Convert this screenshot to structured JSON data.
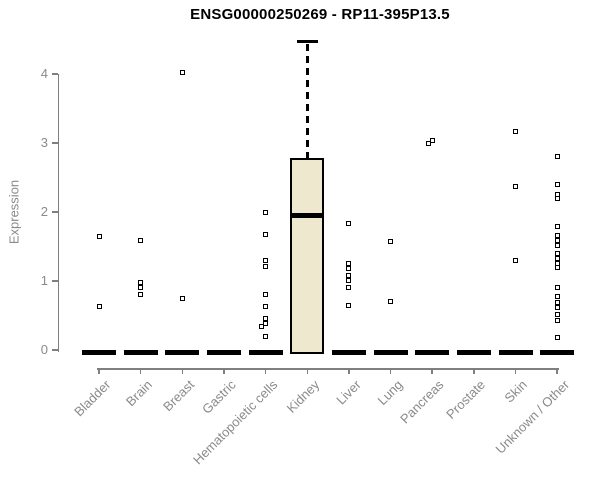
{
  "chart_data": {
    "type": "boxplot",
    "title": "ENSG00000250269 - RP11-395P13.5",
    "ylabel": "Expression",
    "xlabel": "",
    "ylim": [
      0,
      4.6
    ],
    "yticks": [
      0,
      1,
      2,
      3,
      4
    ],
    "grid": false,
    "legend": false,
    "categories": [
      "Bladder",
      "Brain",
      "Breast",
      "Gastric",
      "Hematopoietic cells",
      "Kidney",
      "Liver",
      "Lung",
      "Pancreas",
      "Prostate",
      "Skin",
      "Unknown / Other"
    ],
    "series": [
      {
        "category": "Bladder",
        "box": {
          "q1": 0,
          "median": 0,
          "q3": 0,
          "whisker_low": 0,
          "whisker_high": 0
        },
        "points": [
          1.64,
          0.63
        ]
      },
      {
        "category": "Brain",
        "box": {
          "q1": 0,
          "median": 0,
          "q3": 0,
          "whisker_low": 0,
          "whisker_high": 0
        },
        "points": [
          1.58,
          0.98,
          0.9,
          0.8
        ]
      },
      {
        "category": "Breast",
        "box": {
          "q1": 0,
          "median": 0,
          "q3": 0,
          "whisker_low": 0,
          "whisker_high": 0
        },
        "points": [
          4.02,
          0.74
        ]
      },
      {
        "category": "Gastric",
        "box": {
          "q1": 0,
          "median": 0,
          "q3": 0,
          "whisker_low": 0,
          "whisker_high": 0
        },
        "points": []
      },
      {
        "category": "Hematopoietic cells",
        "box": {
          "q1": 0,
          "median": 0,
          "q3": 0,
          "whisker_low": 0,
          "whisker_high": 0
        },
        "points": [
          2.0,
          1.67,
          1.3,
          1.21,
          0.8,
          0.63,
          0.46,
          0.39,
          0.34,
          0.19
        ]
      },
      {
        "category": "Kidney",
        "box": {
          "q1": 0,
          "median": 1.95,
          "q3": 2.77,
          "whisker_low": 0,
          "whisker_high": 4.47
        },
        "points": []
      },
      {
        "category": "Liver",
        "box": {
          "q1": 0,
          "median": 0,
          "q3": 0,
          "whisker_low": 0,
          "whisker_high": 0
        },
        "points": [
          1.84,
          1.25,
          1.18,
          1.08,
          1.01,
          0.91,
          0.64
        ]
      },
      {
        "category": "Lung",
        "box": {
          "q1": 0,
          "median": 0,
          "q3": 0,
          "whisker_low": 0,
          "whisker_high": 0
        },
        "points": [
          1.57,
          0.71
        ]
      },
      {
        "category": "Pancreas",
        "box": {
          "q1": 0,
          "median": 0,
          "q3": 0,
          "whisker_low": 0,
          "whisker_high": 0
        },
        "points": [
          3.03,
          2.99
        ]
      },
      {
        "category": "Prostate",
        "box": {
          "q1": 0,
          "median": 0,
          "q3": 0,
          "whisker_low": 0,
          "whisker_high": 0
        },
        "points": []
      },
      {
        "category": "Skin",
        "box": {
          "q1": 0,
          "median": 0,
          "q3": 0,
          "whisker_low": 0,
          "whisker_high": 0
        },
        "points": [
          3.17,
          2.37,
          1.3
        ]
      },
      {
        "category": "Unknown / Other",
        "box": {
          "q1": 0,
          "median": 0,
          "q3": 0,
          "whisker_low": 0,
          "whisker_high": 0
        },
        "points": [
          2.81,
          2.4,
          2.25,
          2.19,
          1.79,
          1.66,
          1.59,
          1.52,
          1.4,
          1.33,
          1.26,
          1.2,
          0.91,
          0.77,
          0.69,
          0.61,
          0.52,
          0.43,
          0.18
        ]
      }
    ],
    "colors": {
      "box_fill": "#ede8ce",
      "box_border": "#000000",
      "median": "#000000",
      "whisker": "#000000",
      "point": "#000000",
      "axis": "#7f7f7f",
      "tick_label": "#8a8a8a",
      "title": "#000000",
      "background": "#ffffff"
    }
  }
}
